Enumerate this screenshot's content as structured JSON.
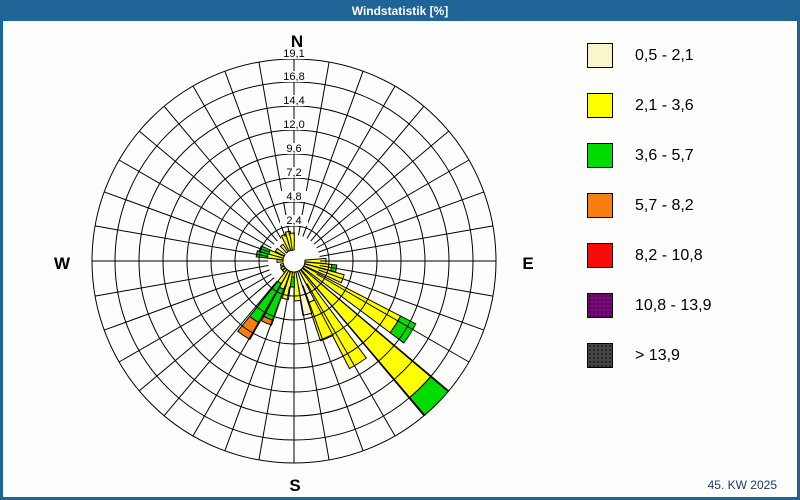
{
  "window": {
    "title": "Windstatistik [%]",
    "footer": "45. KW 2025"
  },
  "colors": {
    "frame": "#1E6496",
    "title_text": "#FFFFFF",
    "background": "#FDFEFC",
    "grid": "#000000",
    "footer_text": "#1B3C6B"
  },
  "chart_data": {
    "type": "wind-rose",
    "title": "Windstatistik [%]",
    "units": "%",
    "grid": "on",
    "legend_position": "right",
    "sector_width_deg": 10,
    "max_value": 19.1,
    "compass_labels": {
      "n": "N",
      "e": "E",
      "s": "S",
      "w": "W"
    },
    "radial_ticks": [
      {
        "label": "2,4",
        "value": 2.4
      },
      {
        "label": "4,8",
        "value": 4.8
      },
      {
        "label": "7,2",
        "value": 7.2
      },
      {
        "label": "9,6",
        "value": 9.6
      },
      {
        "label": "12,0",
        "value": 12.0
      },
      {
        "label": "14,4",
        "value": 14.4
      },
      {
        "label": "16,8",
        "value": 16.8
      },
      {
        "label": "19,1",
        "value": 19.1
      }
    ],
    "speed_bins": [
      {
        "label": "0,5 - 2,1",
        "color": "#FAF6CC",
        "texture": "none"
      },
      {
        "label": "2,1 - 3,6",
        "color": "#FFFF00",
        "texture": "none"
      },
      {
        "label": "3,6 - 5,7",
        "color": "#00DC00",
        "texture": "none"
      },
      {
        "label": "5,7 - 8,2",
        "color": "#F87E12",
        "texture": "none"
      },
      {
        "label": "8,2 - 10,8",
        "color": "#FA0A0A",
        "texture": "none"
      },
      {
        "label": "10,8 - 13,9",
        "color": "#7A067A",
        "texture": "dots"
      },
      {
        "label": "> 13,9",
        "color": "#454545",
        "texture": "dots"
      }
    ],
    "petals": [
      {
        "direction_deg": 90,
        "segments": [
          {
            "bin": 1,
            "to": 2.1
          }
        ]
      },
      {
        "direction_deg": 100,
        "segments": [
          {
            "bin": 1,
            "to": 2.7
          },
          {
            "bin": 2,
            "to": 3.2
          }
        ]
      },
      {
        "direction_deg": 110,
        "segments": [
          {
            "bin": 1,
            "to": 4.1
          }
        ]
      },
      {
        "direction_deg": 122,
        "segments": [
          {
            "bin": 1,
            "to": 10.9
          },
          {
            "bin": 2,
            "to": 12.6
          }
        ]
      },
      {
        "direction_deg": 135,
        "segments": [
          {
            "bin": 1,
            "to": 16.8
          },
          {
            "bin": 2,
            "to": 19.1
          }
        ]
      },
      {
        "direction_deg": 148,
        "segments": [
          {
            "bin": 1,
            "to": 11.0
          }
        ]
      },
      {
        "direction_deg": 157,
        "segments": [
          {
            "bin": 0,
            "to": 3.3
          },
          {
            "bin": 1,
            "to": 7.3
          }
        ]
      },
      {
        "direction_deg": 166,
        "segments": [
          {
            "bin": 0,
            "to": 4.4
          }
        ]
      },
      {
        "direction_deg": 175,
        "segments": [
          {
            "bin": 1,
            "to": 2.9
          }
        ]
      },
      {
        "direction_deg": 184,
        "segments": [
          {
            "bin": 1,
            "to": 0.5
          },
          {
            "bin": 2,
            "to": 1.5
          }
        ]
      },
      {
        "direction_deg": 193,
        "segments": [
          {
            "bin": 1,
            "to": 2.8
          }
        ]
      },
      {
        "direction_deg": 204,
        "segments": [
          {
            "bin": 1,
            "to": 1.9
          },
          {
            "bin": 2,
            "to": 5.2
          },
          {
            "bin": 3,
            "to": 5.7
          }
        ]
      },
      {
        "direction_deg": 214,
        "segments": [
          {
            "bin": 1,
            "to": 1.5
          },
          {
            "bin": 2,
            "to": 6.0
          },
          {
            "bin": 3,
            "to": 7.9
          }
        ]
      },
      {
        "direction_deg": 225,
        "segments": [
          {
            "bin": 1,
            "to": 0.4
          }
        ]
      },
      {
        "direction_deg": 238,
        "segments": [
          {
            "bin": 1,
            "to": 0.4
          }
        ]
      },
      {
        "direction_deg": 252,
        "segments": [
          {
            "bin": 1,
            "to": 0.3
          }
        ]
      },
      {
        "direction_deg": 270,
        "segments": [
          {
            "bin": 1,
            "to": 0.6
          }
        ]
      },
      {
        "direction_deg": 281,
        "segments": [
          {
            "bin": 1,
            "to": 1.6
          },
          {
            "bin": 2,
            "to": 2.7
          }
        ]
      },
      {
        "direction_deg": 290,
        "segments": [
          {
            "bin": 1,
            "to": 1.5
          },
          {
            "bin": 2,
            "to": 2.5
          }
        ]
      },
      {
        "direction_deg": 302,
        "segments": [
          {
            "bin": 1,
            "to": 1.0
          }
        ]
      },
      {
        "direction_deg": 322,
        "segments": [
          {
            "bin": 1,
            "to": 0.9
          }
        ]
      },
      {
        "direction_deg": 338,
        "segments": [
          {
            "bin": 1,
            "to": 1.7
          }
        ]
      },
      {
        "direction_deg": 348,
        "segments": [
          {
            "bin": 1,
            "to": 1.9
          }
        ]
      },
      {
        "direction_deg": 356,
        "segments": [
          {
            "bin": 1,
            "to": 1.7
          }
        ]
      }
    ]
  }
}
